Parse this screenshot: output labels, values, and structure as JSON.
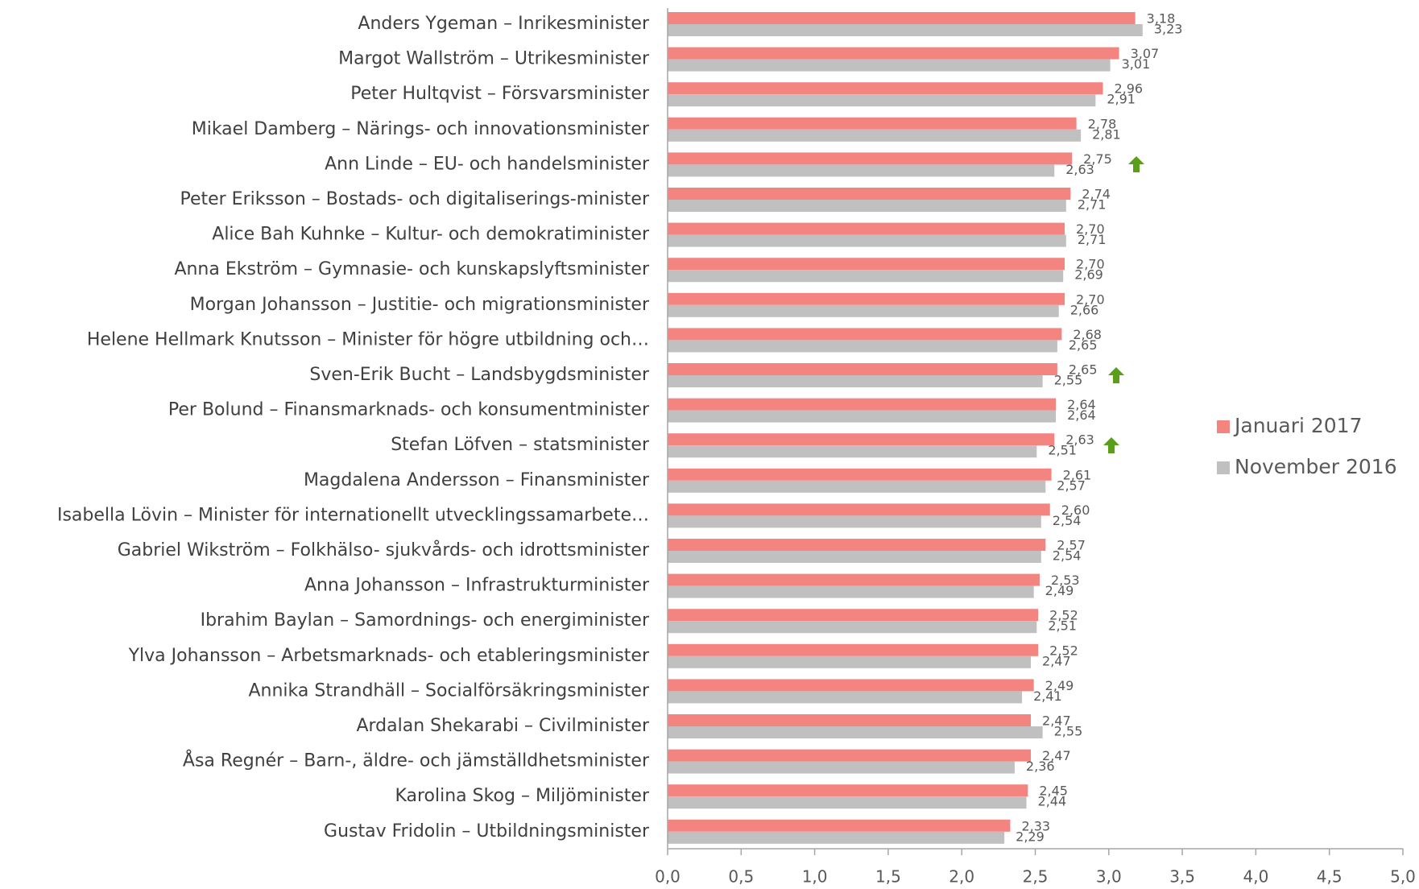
{
  "chart_data": {
    "type": "hbar",
    "categories": [
      "Anders Ygeman – Inrikesminister",
      "Margot Wallström – Utrikesminister",
      "Peter Hultqvist – Försvarsminister",
      "Mikael Damberg – Närings- och innovationsminister",
      "Ann Linde – EU- och handelsminister",
      "Peter Eriksson – Bostads- och digitaliserings-minister",
      "Alice Bah Kuhnke – Kultur- och demokratiminister",
      "Anna Ekström – Gymnasie- och kunskapslyftsminister",
      "Morgan Johansson – Justitie- och migrationsminister",
      "Helene Hellmark Knutsson – Minister för högre utbildning och…",
      "Sven-Erik Bucht – Landsbygdsminister",
      "Per Bolund – Finansmarknads- och konsumentminister",
      "Stefan Löfven – statsminister",
      "Magdalena Andersson – Finansminister",
      "Isabella Lövin – Minister för internationellt utvecklingssamarbete…",
      "Gabriel Wikström – Folkhälso- sjukvårds- och idrottsminister",
      "Anna Johansson – Infrastrukturminister",
      "Ibrahim Baylan – Samordnings- och energiminister",
      "Ylva Johansson – Arbetsmarknads- och etableringsminister",
      "Annika Strandhäll – Socialförsäkringsminister",
      "Ardalan Shekarabi – Civilminister",
      "Åsa Regnér – Barn-, äldre- och jämställdhetsminister",
      "Karolina Skog – Miljöminister",
      "Gustav Fridolin – Utbildningsminister"
    ],
    "series": [
      {
        "name": "Januari 2017",
        "color": "#f4847f",
        "values": [
          3.18,
          3.07,
          2.96,
          2.78,
          2.75,
          2.74,
          2.7,
          2.7,
          2.7,
          2.68,
          2.65,
          2.64,
          2.63,
          2.61,
          2.6,
          2.57,
          2.53,
          2.52,
          2.52,
          2.49,
          2.47,
          2.47,
          2.45,
          2.33
        ],
        "value_labels": [
          "3,18",
          "3,07",
          "2,96",
          "2,78",
          "2,75",
          "2,74",
          "2,70",
          "2,70",
          "2,70",
          "2,68",
          "2,65",
          "2,64",
          "2,63",
          "2,61",
          "2,60",
          "2,57",
          "2,53",
          "2,52",
          "2,52",
          "2,49",
          "2,47",
          "2,47",
          "2,45",
          "2,33"
        ]
      },
      {
        "name": "November 2016",
        "color": "#c0c0c0",
        "values": [
          3.23,
          3.01,
          2.91,
          2.81,
          2.63,
          2.71,
          2.71,
          2.69,
          2.66,
          2.65,
          2.55,
          2.64,
          2.51,
          2.57,
          2.54,
          2.54,
          2.49,
          2.51,
          2.47,
          2.41,
          2.55,
          2.36,
          2.44,
          2.29
        ],
        "value_labels": [
          "3,23",
          "3,01",
          "2,91",
          "2,81",
          "2,63",
          "2,71",
          "2,71",
          "2,69",
          "2,66",
          "2,65",
          "2,55",
          "2,64",
          "2,51",
          "2,57",
          "2,54",
          "2,54",
          "2,49",
          "2,51",
          "2,47",
          "2,41",
          "2,55",
          "2,36",
          "2,44",
          "2,29"
        ]
      }
    ],
    "xlim": [
      0,
      5
    ],
    "xticks": [
      {
        "value": 0,
        "label": "0,0"
      },
      {
        "value": 0.5,
        "label": "0,5"
      },
      {
        "value": 1,
        "label": "1,0"
      },
      {
        "value": 1.5,
        "label": "1,5"
      },
      {
        "value": 2,
        "label": "2,0"
      },
      {
        "value": 2.5,
        "label": "2,5"
      },
      {
        "value": 3,
        "label": "3,0"
      },
      {
        "value": 3.5,
        "label": "3,5"
      },
      {
        "value": 4,
        "label": "4,0"
      },
      {
        "value": 4.5,
        "label": "4,5"
      },
      {
        "value": 5,
        "label": "5,0"
      }
    ],
    "legend": "right"
  }
}
